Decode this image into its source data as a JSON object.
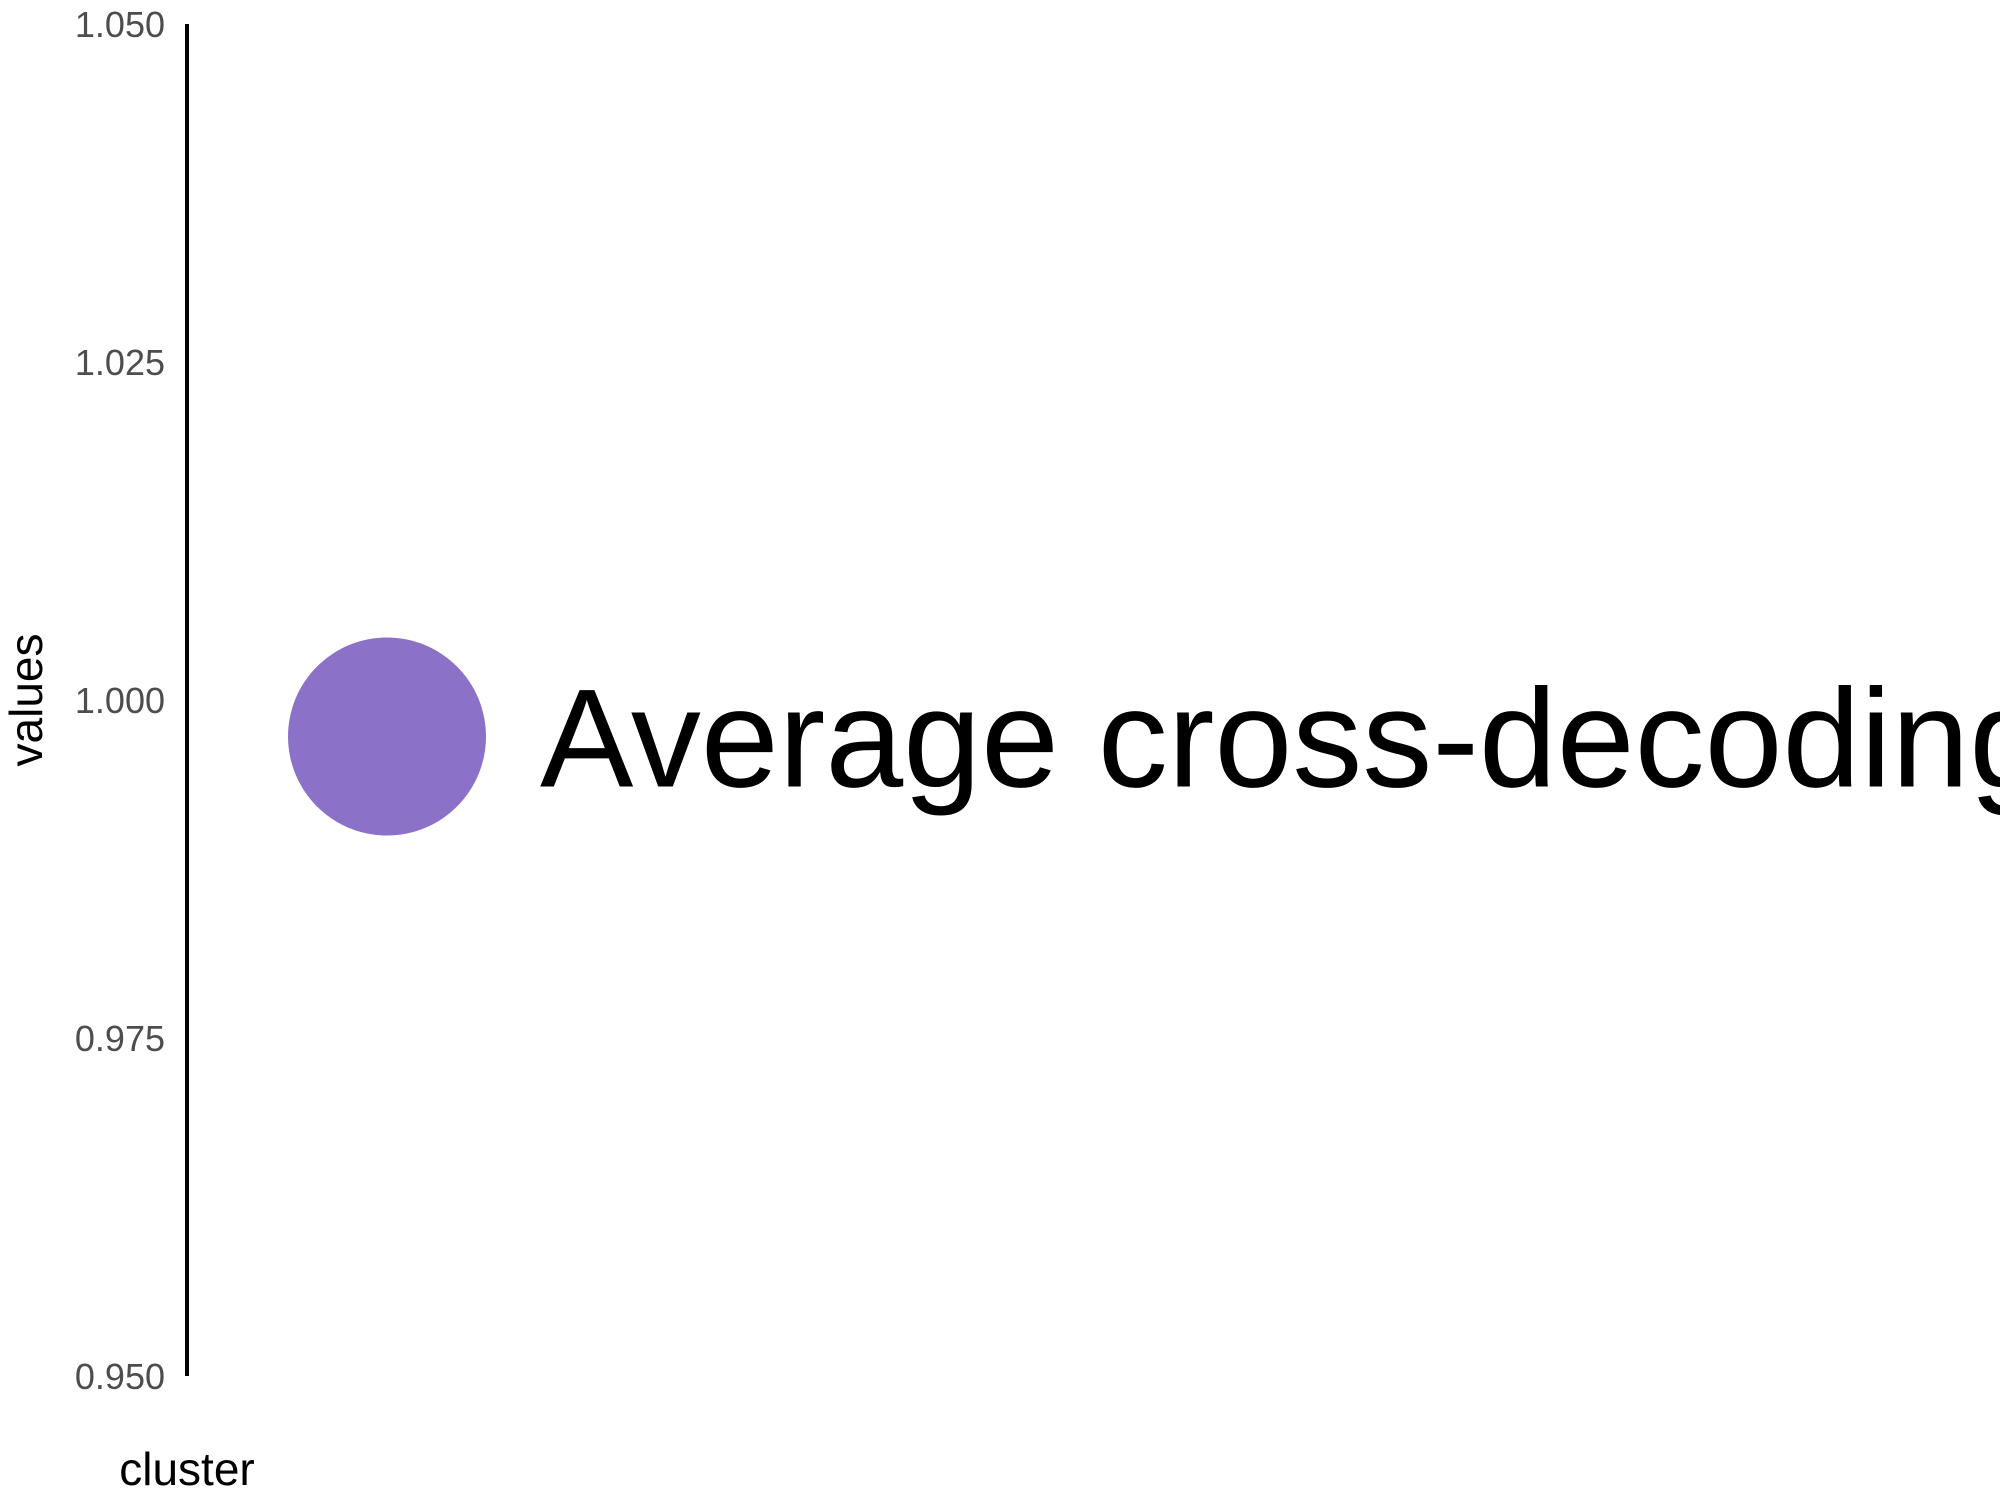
{
  "chart_data": {
    "type": "scatter",
    "xlabel": "cluster",
    "ylabel": "values",
    "ylim": [
      0.95,
      1.05
    ],
    "yticks": [
      "0.950",
      "0.975",
      "1.000",
      "1.025",
      "1.050"
    ],
    "yticks_values": [
      0.95,
      0.975,
      1.0,
      1.025,
      1.05
    ],
    "grid": false,
    "series": [
      {
        "points": [
          {
            "y": 0.9973,
            "label": "Average cross-decoding",
            "color": "#8B72C8"
          }
        ]
      }
    ]
  }
}
